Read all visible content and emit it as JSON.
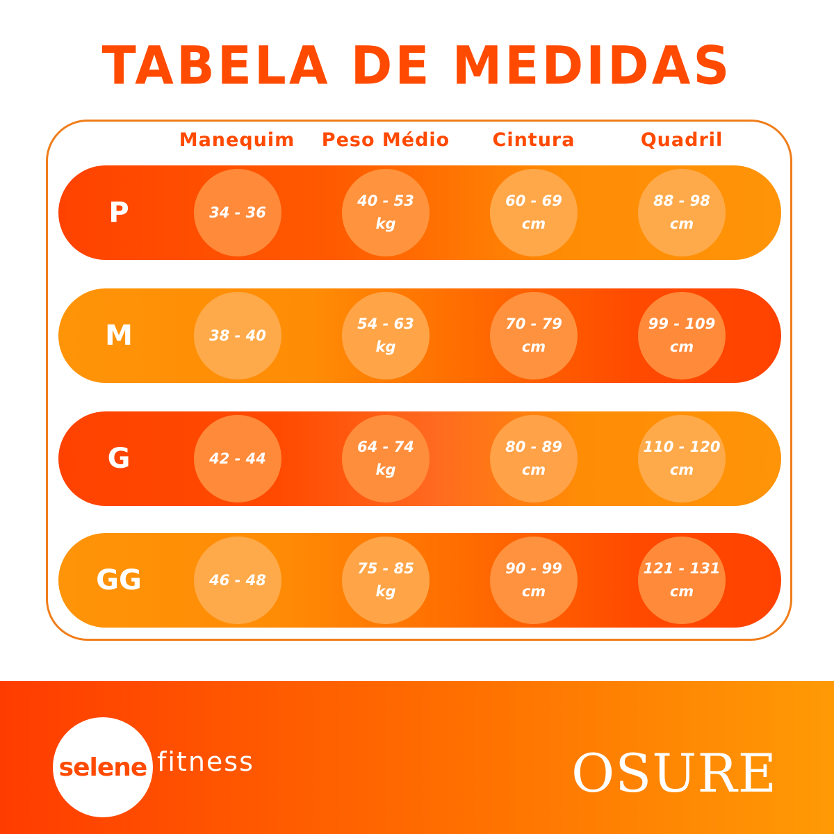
{
  "title": "TABELA DE MEDIDAS",
  "columns": [
    "Manequim",
    "Peso Médio",
    "Cintura",
    "Quadril"
  ],
  "rows": [
    {
      "size": "P",
      "manequim": [
        "34 - 36"
      ],
      "peso": [
        "40 - 53",
        "kg"
      ],
      "cintura": [
        "60 - 69",
        "cm"
      ],
      "quadril": [
        "88 - 98",
        "cm"
      ]
    },
    {
      "size": "M",
      "manequim": [
        "38 - 40"
      ],
      "peso": [
        "54 - 63",
        "kg"
      ],
      "cintura": [
        "70 - 79",
        "cm"
      ],
      "quadril": [
        "99 - 109",
        "cm"
      ]
    },
    {
      "size": "G",
      "manequim": [
        "42 - 44"
      ],
      "peso": [
        "64 - 74",
        "kg"
      ],
      "cintura": [
        "80 - 89",
        "cm"
      ],
      "quadril": [
        "110 - 120",
        "cm"
      ]
    },
    {
      "size": "GG",
      "manequim": [
        "46 - 48"
      ],
      "peso": [
        "75 - 85",
        "kg"
      ],
      "cintura": [
        "90 - 99",
        "cm"
      ],
      "quadril": [
        "121 - 131",
        "cm"
      ]
    }
  ],
  "brand_left": {
    "word1": "selene",
    "word2": "fitness"
  },
  "brand_right": "OSURE",
  "colors": {
    "title": "#ff4a00",
    "header": "#ff4a00",
    "deep_orange": "#ff4200",
    "light_orange": "#ff9408",
    "frame": "#f07d1a"
  }
}
